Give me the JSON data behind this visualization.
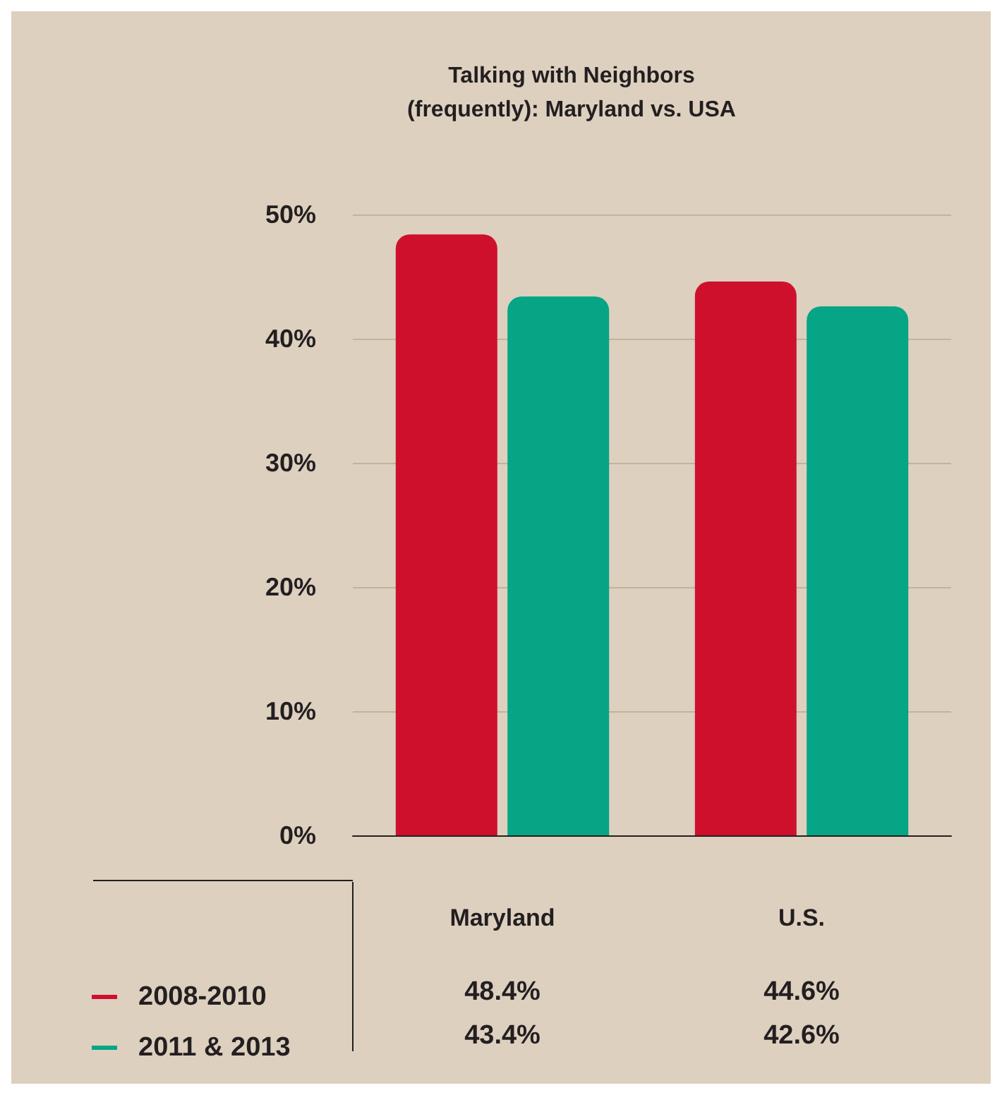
{
  "chart_data": {
    "type": "bar",
    "title": "Talking with Neighbors\n(frequently): Maryland vs. USA",
    "categories": [
      "Maryland",
      "U.S."
    ],
    "series": [
      {
        "name": "2008-2010",
        "color": "#cf102d",
        "values": [
          48.4,
          44.6
        ],
        "value_labels": [
          "48.4%",
          "44.6%"
        ]
      },
      {
        "name": "2011 & 2013",
        "color": "#05a585",
        "values": [
          43.4,
          42.6
        ],
        "value_labels": [
          "43.4%",
          "42.6%"
        ]
      }
    ],
    "ylim": [
      0,
      50
    ],
    "yticks": [
      {
        "value": 0,
        "label": "0%"
      },
      {
        "value": 10,
        "label": "10%"
      },
      {
        "value": 20,
        "label": "20%"
      },
      {
        "value": 30,
        "label": "30%"
      },
      {
        "value": 40,
        "label": "40%"
      },
      {
        "value": 50,
        "label": "50%"
      }
    ],
    "grid": "y",
    "legend": "bottom left"
  }
}
